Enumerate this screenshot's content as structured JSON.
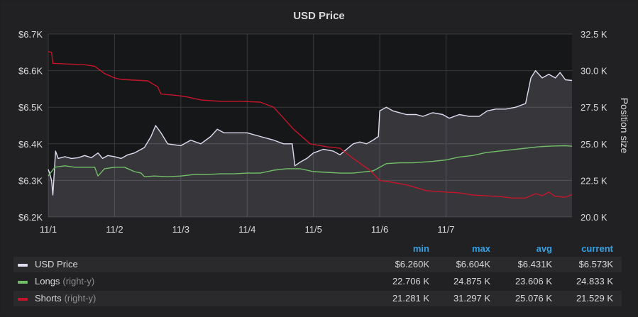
{
  "panel": {
    "title": "USD Price"
  },
  "chart_data": {
    "type": "line",
    "title": "USD Price",
    "x_ticks": [
      "11/1",
      "11/2",
      "11/3",
      "11/4",
      "11/5",
      "11/6",
      "11/7"
    ],
    "x_range": [
      0,
      7.9
    ],
    "y_left": {
      "ticks": [
        "$6.2K",
        "$6.3K",
        "$6.4K",
        "$6.5K",
        "$6.6K",
        "$6.7K"
      ],
      "range": [
        6200,
        6700
      ]
    },
    "y_right": {
      "label": "Position size",
      "ticks": [
        "20.0 K",
        "22.5 K",
        "25.0 K",
        "27.5 K",
        "30.0 K",
        "32.5 K"
      ],
      "range": [
        20000,
        32500
      ]
    },
    "grid": true,
    "series": [
      {
        "name": "USD Price",
        "axis": "left",
        "color": "#e0dcf0",
        "fill": true,
        "points": [
          [
            0.0,
            6330
          ],
          [
            0.02,
            6320
          ],
          [
            0.05,
            6300
          ],
          [
            0.07,
            6260
          ],
          [
            0.09,
            6320
          ],
          [
            0.11,
            6380
          ],
          [
            0.15,
            6360
          ],
          [
            0.25,
            6365
          ],
          [
            0.35,
            6360
          ],
          [
            0.45,
            6362
          ],
          [
            0.55,
            6368
          ],
          [
            0.65,
            6362
          ],
          [
            0.75,
            6375
          ],
          [
            0.82,
            6360
          ],
          [
            0.9,
            6368
          ],
          [
            1.0,
            6365
          ],
          [
            1.1,
            6360
          ],
          [
            1.2,
            6370
          ],
          [
            1.3,
            6375
          ],
          [
            1.45,
            6390
          ],
          [
            1.55,
            6420
          ],
          [
            1.62,
            6450
          ],
          [
            1.7,
            6430
          ],
          [
            1.8,
            6400
          ],
          [
            2.0,
            6395
          ],
          [
            2.15,
            6410
          ],
          [
            2.3,
            6400
          ],
          [
            2.45,
            6420
          ],
          [
            2.55,
            6440
          ],
          [
            2.65,
            6430
          ],
          [
            2.8,
            6430
          ],
          [
            3.0,
            6430
          ],
          [
            3.2,
            6420
          ],
          [
            3.4,
            6410
          ],
          [
            3.55,
            6400
          ],
          [
            3.68,
            6400
          ],
          [
            3.72,
            6340
          ],
          [
            3.8,
            6350
          ],
          [
            3.9,
            6360
          ],
          [
            4.0,
            6375
          ],
          [
            4.15,
            6385
          ],
          [
            4.3,
            6380
          ],
          [
            4.4,
            6370
          ],
          [
            4.5,
            6385
          ],
          [
            4.6,
            6400
          ],
          [
            4.7,
            6405
          ],
          [
            4.8,
            6400
          ],
          [
            4.9,
            6410
          ],
          [
            4.98,
            6420
          ],
          [
            5.0,
            6490
          ],
          [
            5.1,
            6500
          ],
          [
            5.2,
            6490
          ],
          [
            5.3,
            6485
          ],
          [
            5.4,
            6480
          ],
          [
            5.55,
            6480
          ],
          [
            5.65,
            6475
          ],
          [
            5.8,
            6485
          ],
          [
            5.95,
            6480
          ],
          [
            6.05,
            6470
          ],
          [
            6.2,
            6480
          ],
          [
            6.35,
            6475
          ],
          [
            6.5,
            6475
          ],
          [
            6.62,
            6490
          ],
          [
            6.75,
            6495
          ],
          [
            6.9,
            6495
          ],
          [
            7.05,
            6500
          ],
          [
            7.2,
            6510
          ],
          [
            7.28,
            6580
          ],
          [
            7.35,
            6600
          ],
          [
            7.45,
            6580
          ],
          [
            7.55,
            6590
          ],
          [
            7.65,
            6580
          ],
          [
            7.72,
            6595
          ],
          [
            7.8,
            6575
          ],
          [
            7.9,
            6573
          ]
        ]
      },
      {
        "name": "Longs",
        "axis": "right",
        "axis_note": "(right-y)",
        "color": "#73bf69",
        "points": [
          [
            0.0,
            22800
          ],
          [
            0.1,
            23400
          ],
          [
            0.25,
            23500
          ],
          [
            0.4,
            23400
          ],
          [
            0.55,
            23400
          ],
          [
            0.7,
            23400
          ],
          [
            0.75,
            22800
          ],
          [
            0.85,
            23300
          ],
          [
            1.0,
            23400
          ],
          [
            1.15,
            23400
          ],
          [
            1.3,
            23100
          ],
          [
            1.4,
            23000
          ],
          [
            1.45,
            22750
          ],
          [
            1.6,
            22800
          ],
          [
            1.8,
            22750
          ],
          [
            2.0,
            22800
          ],
          [
            2.2,
            22900
          ],
          [
            2.4,
            22900
          ],
          [
            2.6,
            22950
          ],
          [
            2.8,
            22950
          ],
          [
            3.0,
            23000
          ],
          [
            3.2,
            23000
          ],
          [
            3.4,
            23200
          ],
          [
            3.6,
            23300
          ],
          [
            3.8,
            23300
          ],
          [
            4.0,
            23100
          ],
          [
            4.2,
            23050
          ],
          [
            4.4,
            23000
          ],
          [
            4.6,
            23000
          ],
          [
            4.9,
            23150
          ],
          [
            5.1,
            23650
          ],
          [
            5.3,
            23700
          ],
          [
            5.5,
            23700
          ],
          [
            5.8,
            23800
          ],
          [
            6.0,
            23900
          ],
          [
            6.2,
            24100
          ],
          [
            6.4,
            24200
          ],
          [
            6.6,
            24400
          ],
          [
            6.8,
            24500
          ],
          [
            7.0,
            24600
          ],
          [
            7.2,
            24700
          ],
          [
            7.4,
            24800
          ],
          [
            7.6,
            24850
          ],
          [
            7.8,
            24870
          ],
          [
            7.9,
            24833
          ]
        ]
      },
      {
        "name": "Shorts",
        "axis": "right",
        "axis_note": "(right-y)",
        "color": "#c4162a",
        "points": [
          [
            0.0,
            31300
          ],
          [
            0.05,
            31250
          ],
          [
            0.07,
            30500
          ],
          [
            0.3,
            30450
          ],
          [
            0.55,
            30400
          ],
          [
            0.7,
            30300
          ],
          [
            0.85,
            29800
          ],
          [
            1.0,
            29500
          ],
          [
            1.1,
            29400
          ],
          [
            1.5,
            29300
          ],
          [
            1.65,
            28900
          ],
          [
            1.7,
            28400
          ],
          [
            1.95,
            28300
          ],
          [
            2.1,
            28200
          ],
          [
            2.3,
            28000
          ],
          [
            2.6,
            27900
          ],
          [
            2.9,
            27900
          ],
          [
            3.2,
            27850
          ],
          [
            3.4,
            27500
          ],
          [
            3.7,
            26000
          ],
          [
            3.95,
            25000
          ],
          [
            4.2,
            24800
          ],
          [
            4.4,
            24700
          ],
          [
            4.6,
            24000
          ],
          [
            4.85,
            23200
          ],
          [
            5.0,
            22500
          ],
          [
            5.15,
            22400
          ],
          [
            5.4,
            22200
          ],
          [
            5.7,
            21800
          ],
          [
            6.0,
            21700
          ],
          [
            6.2,
            21650
          ],
          [
            6.4,
            21500
          ],
          [
            6.6,
            21450
          ],
          [
            6.8,
            21400
          ],
          [
            7.0,
            21300
          ],
          [
            7.2,
            21300
          ],
          [
            7.35,
            21600
          ],
          [
            7.45,
            21450
          ],
          [
            7.55,
            21700
          ],
          [
            7.65,
            21400
          ],
          [
            7.8,
            21350
          ],
          [
            7.9,
            21529
          ]
        ]
      }
    ]
  },
  "legend": {
    "headers": [
      "min",
      "max",
      "avg",
      "current"
    ],
    "rows": [
      {
        "name": "USD Price",
        "axis_note": "",
        "color": "#e0dcf0",
        "min": "$6.260K",
        "max": "$6.604K",
        "avg": "$6.431K",
        "current": "$6.573K"
      },
      {
        "name": "Longs",
        "axis_note": "(right-y)",
        "color": "#73bf69",
        "min": "22.706 K",
        "max": "24.875 K",
        "avg": "23.606 K",
        "current": "24.833 K"
      },
      {
        "name": "Shorts",
        "axis_note": "(right-y)",
        "color": "#c4162a",
        "min": "21.281 K",
        "max": "31.297 K",
        "avg": "25.076 K",
        "current": "21.529 K"
      }
    ]
  }
}
